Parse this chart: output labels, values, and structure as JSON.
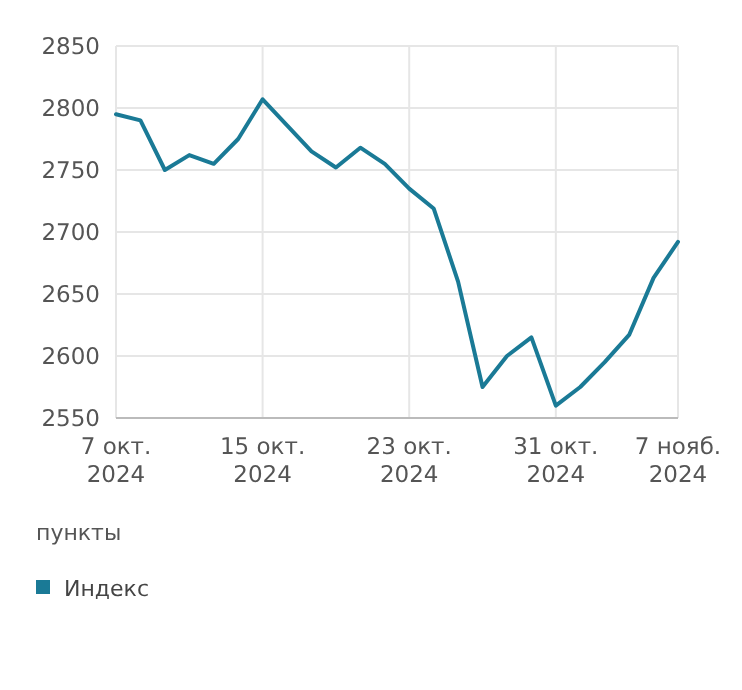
{
  "chart_data": {
    "type": "line",
    "ylabel": "пункты",
    "categories": [
      "7 окт.\n2024",
      null,
      null,
      null,
      null,
      null,
      "15 окт.\n2024",
      null,
      null,
      null,
      null,
      null,
      "23 окт.\n2024",
      null,
      null,
      null,
      null,
      null,
      "31 окт.\n2024",
      null,
      null,
      null,
      null,
      "7 нояб.\n2024"
    ],
    "series": [
      {
        "name": "Индекс",
        "color": "#1a7a96",
        "values": [
          2795,
          2790,
          2750,
          2762,
          2755,
          2775,
          2807,
          2786,
          2765,
          2752,
          2768,
          2755,
          2735,
          2719,
          2660,
          2575,
          2600,
          2615,
          2560,
          2575,
          2595,
          2617,
          2663,
          2692
        ]
      }
    ],
    "ylim": [
      2550,
      2850
    ],
    "yticks": [
      2550,
      2600,
      2650,
      2700,
      2750,
      2800,
      2850
    ],
    "grid": true,
    "legend": "bottom left",
    "marker": "none",
    "line_style": "solid"
  }
}
